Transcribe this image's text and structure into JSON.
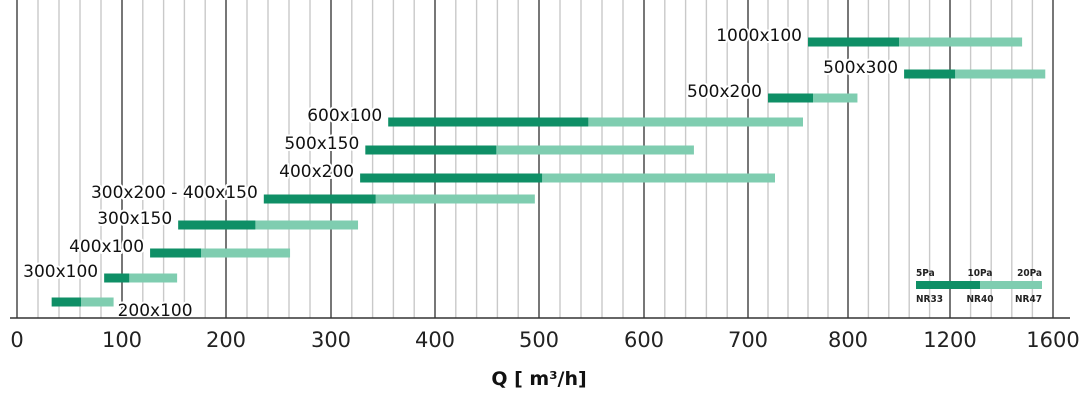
{
  "chart_data": {
    "type": "bar",
    "orientation": "horizontal-range",
    "xlabel": "Q [ m³/h]",
    "x_ticks": [
      "0",
      "100",
      "200",
      "300",
      "400",
      "500",
      "600",
      "700",
      "800",
      "1200",
      "1600"
    ],
    "x_tick_values": [
      0,
      100,
      200,
      300,
      400,
      500,
      600,
      700,
      800,
      1200,
      1600
    ],
    "grid": true,
    "colors": {
      "dark": "#0f8f66",
      "light": "#7fcdb0",
      "grid_minor": "#c9c9c9",
      "grid_major": "#555555"
    },
    "series_stages": [
      "5Pa",
      "10Pa",
      "20Pa"
    ],
    "noise_ratings": [
      "NR33",
      "NR40",
      "NR47"
    ],
    "bars": [
      {
        "label": "1000x100",
        "start": 760,
        "mid": 1000,
        "end": 1480
      },
      {
        "label": "500x300",
        "start": 1020,
        "mid": 1220,
        "end": 1570
      },
      {
        "label": "500x200",
        "start": 720,
        "mid": 765,
        "end": 837
      },
      {
        "label": "600x100",
        "start": 355,
        "mid": 547,
        "end": 755
      },
      {
        "label": "500x150",
        "start": 333,
        "mid": 459,
        "end": 648
      },
      {
        "label": "400x200",
        "start": 328,
        "mid": 503,
        "end": 727
      },
      {
        "label": "300x200 - 400x150",
        "start": 236,
        "mid": 343,
        "end": 496
      },
      {
        "label": "300x150",
        "start": 154,
        "mid": 228,
        "end": 326
      },
      {
        "label": "400x100",
        "start": 127,
        "mid": 176,
        "end": 261
      },
      {
        "label": "300x100",
        "start": 83,
        "mid": 107,
        "end": 153
      },
      {
        "label": "200x100",
        "start": 33,
        "mid": 61,
        "end": 92
      }
    ]
  }
}
